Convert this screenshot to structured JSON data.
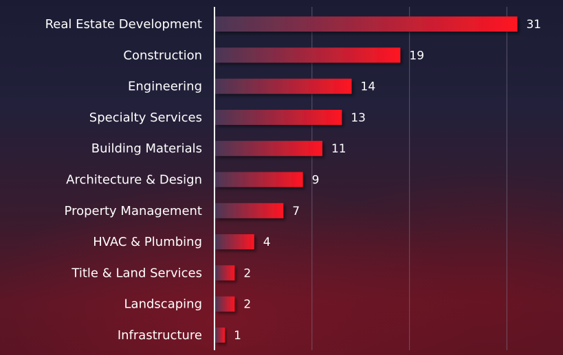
{
  "colors": {
    "bar_start": "#4a3756",
    "bar_end": "#ff1522",
    "grid": "#7a7288",
    "axis": "#ffffff",
    "text": "#ffffff"
  },
  "chart_data": {
    "type": "bar",
    "orientation": "horizontal",
    "categories": [
      "Real Estate Development",
      "Construction",
      "Engineering",
      "Specialty Services",
      "Building Materials",
      "Architecture & Design",
      "Property Management",
      "HVAC & Plumbing",
      "Title & Land Services",
      "Landscaping",
      "Infrastructure"
    ],
    "values": [
      31,
      19,
      14,
      13,
      11,
      9,
      7,
      4,
      2,
      2,
      1
    ],
    "xlim": [
      0,
      35
    ],
    "grid": true,
    "grid_interval": 10,
    "data_labels": true,
    "legend": "none"
  }
}
